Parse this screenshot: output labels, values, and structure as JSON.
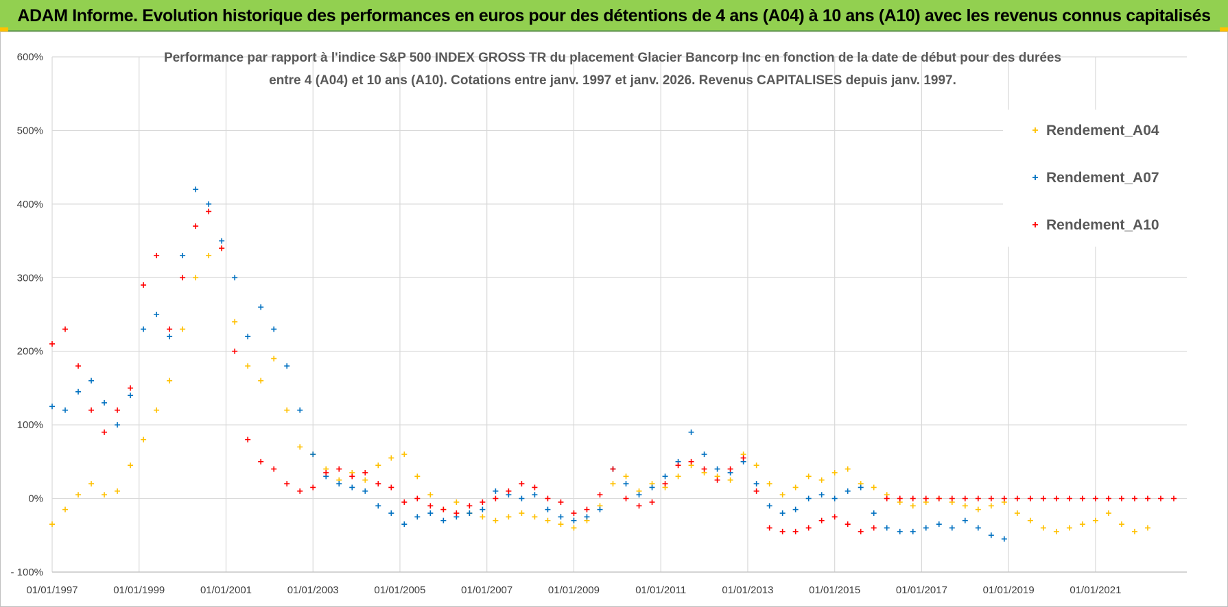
{
  "header": {
    "title": "ADAM Informe. Evolution historique des performances en euros pour des détentions de 4 ans (A04) à 10 ans (A10) avec les revenus connus capitalisés"
  },
  "chart_data": {
    "type": "scatter",
    "title_line1": "Performance par rapport à l'indice S&P 500 INDEX GROSS TR  du placement Glacier Bancorp Inc en fonction de la date de début pour des durées",
    "title_line2": "entre 4 (A04) et 10 ans (A10).  Cotations entre janv. 1997 et janv. 2026. Revenus CAPITALISES  depuis janv. 1997.",
    "xlabel": "",
    "ylabel": "",
    "xlim": [
      1997.0,
      2023.1
    ],
    "ylim": [
      -100,
      600
    ],
    "y_ticks": [
      -100,
      0,
      100,
      200,
      300,
      400,
      500,
      600
    ],
    "y_tick_labels": [
      "- 100%",
      "0%",
      "100%",
      "200%",
      "300%",
      "400%",
      "500%",
      "600%"
    ],
    "x_ticks": [
      1997,
      1999,
      2001,
      2003,
      2005,
      2007,
      2009,
      2011,
      2013,
      2015,
      2017,
      2019,
      2021
    ],
    "x_tick_labels": [
      "01/01/1997",
      "01/01/1999",
      "01/01/2001",
      "01/01/2003",
      "01/01/2005",
      "01/01/2007",
      "01/01/2009",
      "01/01/2011",
      "01/01/2013",
      "01/01/2015",
      "01/01/2017",
      "01/01/2019",
      "01/01/2021"
    ],
    "grid": true,
    "legend_position": "top-right",
    "marker": "+",
    "series": [
      {
        "name": "Rendement_A04",
        "color": "#ffc000",
        "x": [
          1997.0,
          1997.3,
          1997.6,
          1997.9,
          1998.2,
          1998.5,
          1998.8,
          1999.1,
          1999.4,
          1999.7,
          2000.0,
          2000.3,
          2000.6,
          2000.9,
          2001.2,
          2001.5,
          2001.8,
          2002.1,
          2002.4,
          2002.7,
          2003.0,
          2003.3,
          2003.6,
          2003.9,
          2004.2,
          2004.5,
          2004.8,
          2005.1,
          2005.4,
          2005.7,
          2006.0,
          2006.3,
          2006.6,
          2006.9,
          2007.2,
          2007.5,
          2007.8,
          2008.1,
          2008.4,
          2008.7,
          2009.0,
          2009.3,
          2009.6,
          2009.9,
          2010.2,
          2010.5,
          2010.8,
          2011.1,
          2011.4,
          2011.7,
          2012.0,
          2012.3,
          2012.6,
          2012.9,
          2013.2,
          2013.5,
          2013.8,
          2014.1,
          2014.4,
          2014.7,
          2015.0,
          2015.3,
          2015.6,
          2015.9,
          2016.2,
          2016.5,
          2016.8,
          2017.1,
          2017.4,
          2017.7,
          2018.0,
          2018.3,
          2018.6,
          2018.9,
          2019.2,
          2019.5,
          2019.8,
          2020.1,
          2020.4,
          2020.7,
          2021.0,
          2021.3,
          2021.6,
          2021.9,
          2022.2
        ],
        "values": [
          -35,
          -15,
          5,
          20,
          5,
          10,
          45,
          80,
          120,
          160,
          230,
          300,
          330,
          340,
          240,
          180,
          160,
          190,
          120,
          70,
          60,
          40,
          25,
          35,
          25,
          45,
          55,
          60,
          30,
          5,
          -15,
          -5,
          -20,
          -25,
          -30,
          -25,
          -20,
          -25,
          -30,
          -35,
          -40,
          -30,
          -10,
          20,
          30,
          10,
          20,
          15,
          30,
          45,
          35,
          30,
          25,
          60,
          45,
          20,
          5,
          15,
          30,
          25,
          35,
          40,
          20,
          15,
          5,
          -5,
          -10,
          -5,
          0,
          -5,
          -10,
          -15,
          -10,
          -5,
          -20,
          -30,
          -40,
          -45,
          -40,
          -35,
          -30,
          -20,
          -35,
          -45,
          -40
        ]
      },
      {
        "name": "Rendement_A07",
        "color": "#0070c0",
        "x": [
          1997.0,
          1997.3,
          1997.6,
          1997.9,
          1998.2,
          1998.5,
          1998.8,
          1999.1,
          1999.4,
          1999.7,
          2000.0,
          2000.3,
          2000.6,
          2000.9,
          2001.2,
          2001.5,
          2001.8,
          2002.1,
          2002.4,
          2002.7,
          2003.0,
          2003.3,
          2003.6,
          2003.9,
          2004.2,
          2004.5,
          2004.8,
          2005.1,
          2005.4,
          2005.7,
          2006.0,
          2006.3,
          2006.6,
          2006.9,
          2007.2,
          2007.5,
          2007.8,
          2008.1,
          2008.4,
          2008.7,
          2009.0,
          2009.3,
          2009.6,
          2009.9,
          2010.2,
          2010.5,
          2010.8,
          2011.1,
          2011.4,
          2011.7,
          2012.0,
          2012.3,
          2012.6,
          2012.9,
          2013.2,
          2013.5,
          2013.8,
          2014.1,
          2014.4,
          2014.7,
          2015.0,
          2015.3,
          2015.6,
          2015.9,
          2016.2,
          2016.5,
          2016.8,
          2017.1,
          2017.4,
          2017.7,
          2018.0,
          2018.3,
          2018.6,
          2018.9
        ],
        "values": [
          125,
          120,
          145,
          160,
          130,
          100,
          140,
          230,
          250,
          220,
          330,
          420,
          400,
          350,
          300,
          220,
          260,
          230,
          180,
          120,
          60,
          30,
          20,
          15,
          10,
          -10,
          -20,
          -35,
          -25,
          -20,
          -30,
          -25,
          -20,
          -15,
          10,
          5,
          0,
          5,
          -15,
          -25,
          -30,
          -25,
          -15,
          40,
          20,
          5,
          15,
          30,
          50,
          90,
          60,
          40,
          35,
          50,
          20,
          -10,
          -20,
          -15,
          0,
          5,
          0,
          10,
          15,
          -20,
          -40,
          -45,
          -45,
          -40,
          -35,
          -40,
          -30,
          -40,
          -50,
          -55
        ]
      },
      {
        "name": "Rendement_A10",
        "color": "#ff0000",
        "x": [
          1997.0,
          1997.3,
          1997.6,
          1997.9,
          1998.2,
          1998.5,
          1998.8,
          1999.1,
          1999.4,
          1999.7,
          2000.0,
          2000.3,
          2000.6,
          2000.9,
          2001.2,
          2001.5,
          2001.8,
          2002.1,
          2002.4,
          2002.7,
          2003.0,
          2003.3,
          2003.6,
          2003.9,
          2004.2,
          2004.5,
          2004.8,
          2005.1,
          2005.4,
          2005.7,
          2006.0,
          2006.3,
          2006.6,
          2006.9,
          2007.2,
          2007.5,
          2007.8,
          2008.1,
          2008.4,
          2008.7,
          2009.0,
          2009.3,
          2009.6,
          2009.9,
          2010.2,
          2010.5,
          2010.8,
          2011.1,
          2011.4,
          2011.7,
          2012.0,
          2012.3,
          2012.6,
          2012.9,
          2013.2,
          2013.5,
          2013.8,
          2014.1,
          2014.4,
          2014.7,
          2015.0,
          2015.3,
          2015.6,
          2015.9,
          2016.2,
          2016.5,
          2016.8,
          2017.1,
          2017.4,
          2017.7,
          2018.0,
          2018.3,
          2018.6,
          2018.9,
          2019.2,
          2019.5,
          2019.8,
          2020.1,
          2020.4,
          2020.7,
          2021.0,
          2021.3,
          2021.6,
          2021.9,
          2022.2,
          2022.5,
          2022.8
        ],
        "values": [
          210,
          230,
          180,
          120,
          90,
          120,
          150,
          290,
          330,
          230,
          300,
          370,
          390,
          340,
          200,
          80,
          50,
          40,
          20,
          10,
          15,
          35,
          40,
          30,
          35,
          20,
          15,
          -5,
          0,
          -10,
          -15,
          -20,
          -10,
          -5,
          0,
          10,
          20,
          15,
          0,
          -5,
          -20,
          -15,
          5,
          40,
          0,
          -10,
          -5,
          20,
          45,
          50,
          40,
          25,
          40,
          55,
          10,
          -40,
          -45,
          -45,
          -40,
          -30,
          -25,
          -35,
          -45,
          -40,
          0,
          0,
          0,
          0,
          0,
          0,
          0,
          0,
          0,
          0,
          0,
          0,
          0,
          0,
          0,
          0,
          0,
          0,
          0,
          0,
          0,
          0,
          0
        ]
      }
    ]
  }
}
